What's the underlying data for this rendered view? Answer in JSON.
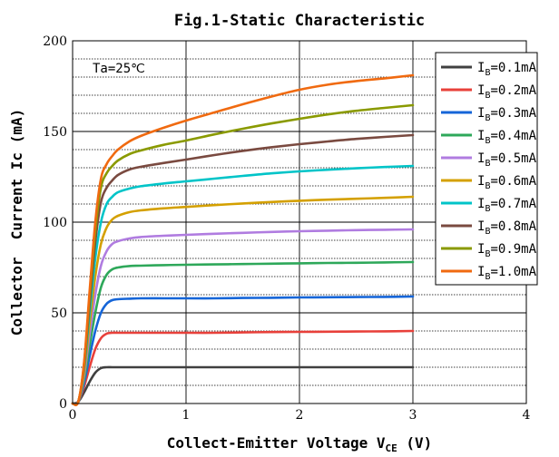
{
  "chart_data": {
    "type": "line",
    "title": "Fig.1-Static Characteristic",
    "xlabel": "Collect-Emitter Voltage V",
    "xlabel_sub": "CE",
    "xlabel_suffix": " (V)",
    "ylabel": "Collector  Current Ic (mA)",
    "xlim": [
      0,
      4
    ],
    "ylim": [
      0,
      200
    ],
    "x_ticks": [
      0,
      1,
      2,
      3,
      4
    ],
    "y_ticks": [
      0,
      50,
      100,
      150,
      200
    ],
    "grid": true,
    "legend_position": "top-right",
    "annotation": "Ta=25℃",
    "x": [
      0.0,
      0.05,
      0.1,
      0.15,
      0.2,
      0.25,
      0.3,
      0.35,
      0.4,
      0.5,
      0.6,
      0.8,
      1.0,
      1.25,
      1.5,
      1.75,
      2.0,
      2.25,
      2.5,
      2.75,
      3.0
    ],
    "series": [
      {
        "name": "0.1mA",
        "color": "#404040",
        "values": [
          0,
          1,
          6,
          12,
          17,
          19.5,
          20,
          20,
          20,
          20,
          20,
          20,
          20,
          20,
          20,
          20,
          20,
          20,
          20,
          20,
          20
        ]
      },
      {
        "name": "0.2mA",
        "color": "#e8403a",
        "values": [
          0,
          1,
          9,
          20,
          30,
          36,
          38.5,
          39,
          39,
          39,
          39,
          39,
          39,
          39,
          39.2,
          39.4,
          39.5,
          39.6,
          39.7,
          39.8,
          40
        ]
      },
      {
        "name": "0.3mA",
        "color": "#1565d8",
        "values": [
          0,
          1,
          11,
          26,
          40,
          50,
          55,
          57,
          57.5,
          57.8,
          58,
          58,
          58,
          58,
          58.2,
          58.3,
          58.5,
          58.6,
          58.7,
          58.8,
          59
        ]
      },
      {
        "name": "0.4mA",
        "color": "#2ea85a",
        "values": [
          0,
          1,
          13,
          32,
          50,
          64,
          71,
          74,
          75,
          75.8,
          76,
          76.3,
          76.5,
          76.7,
          76.9,
          77.1,
          77.3,
          77.5,
          77.6,
          77.8,
          78
        ]
      },
      {
        "name": "0.5mA",
        "color": "#b07ce0",
        "values": [
          0,
          1,
          15,
          38,
          60,
          76,
          84,
          88,
          89.5,
          91,
          91.8,
          92.5,
          93,
          93.6,
          94.1,
          94.6,
          95,
          95.3,
          95.6,
          95.8,
          96
        ]
      },
      {
        "name": "0.6mA",
        "color": "#d4a000",
        "values": [
          0,
          1,
          17,
          44,
          70,
          88,
          97,
          101.5,
          103.5,
          105.5,
          106.5,
          107.6,
          108.4,
          109.4,
          110.3,
          111.1,
          111.8,
          112.4,
          112.9,
          113.4,
          114
        ]
      },
      {
        "name": "0.7mA",
        "color": "#00c4c8",
        "values": [
          0,
          1,
          19,
          50,
          80,
          100,
          110,
          114,
          116.5,
          118.5,
          119.8,
          121.3,
          122.5,
          124,
          125.5,
          126.9,
          128,
          128.9,
          129.7,
          130.4,
          131
        ]
      },
      {
        "name": "0.8mA",
        "color": "#7a4a40",
        "values": [
          0,
          1,
          20,
          55,
          89,
          111,
          119,
          123,
          126,
          129,
          130.5,
          132.6,
          134.5,
          137,
          139.3,
          141.3,
          143,
          144.5,
          145.9,
          147,
          148
        ]
      },
      {
        "name": "0.9mA",
        "color": "#8a9a00",
        "values": [
          0,
          1,
          21,
          59,
          95,
          119,
          127,
          131,
          134,
          137.5,
          139.5,
          142.6,
          145,
          148.4,
          151.5,
          154.4,
          157,
          159.4,
          161.4,
          163,
          164.5
        ]
      },
      {
        "name": "1.0mA",
        "color": "#f06a10",
        "values": [
          0,
          1,
          22,
          62,
          100,
          124,
          132,
          136.5,
          140,
          144.5,
          147.5,
          152,
          156,
          160.5,
          165,
          169.2,
          173,
          175.8,
          177.8,
          179.3,
          181
        ]
      }
    ]
  }
}
